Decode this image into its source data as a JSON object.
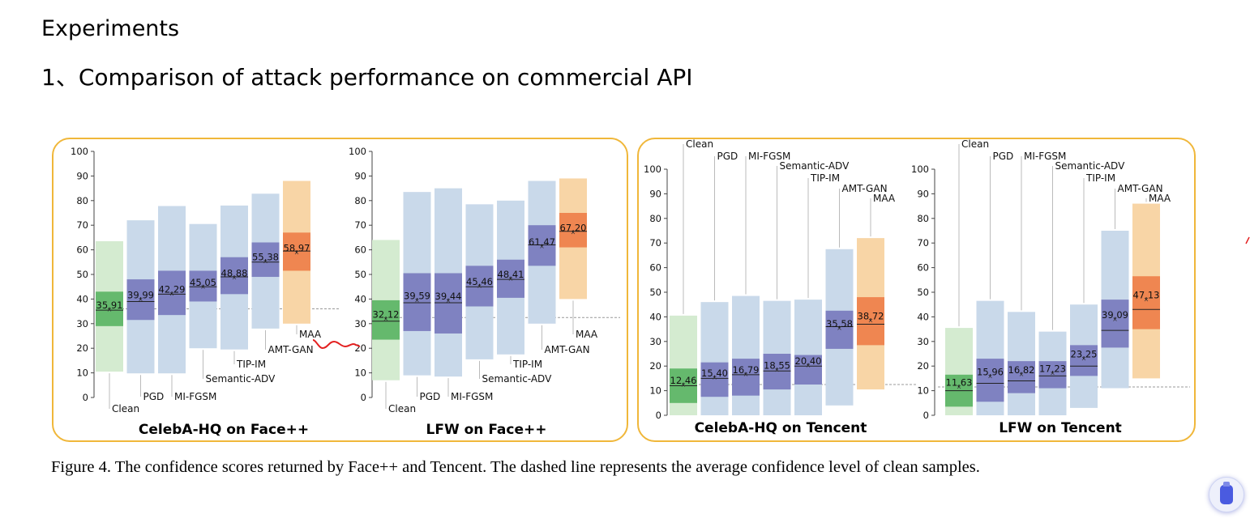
{
  "page": {
    "heading": "Experiments",
    "section": "1、Comparison of attack performance on commercial API"
  },
  "caption": "Figure 4.  The confidence scores returned by Face++ and Tencent.  The dashed line represents the average confidence level of clean samples.",
  "colors": {
    "frame": "#f0b73a",
    "clean_light": "#d4ebd0",
    "clean_dark": "#65b96d",
    "attack_light": "#c9d9ea",
    "attack_dark": "#7f82c1",
    "maa_light": "#f8d5a6",
    "maa_dark": "#ef8651",
    "annotation_stroke": "#e32020"
  },
  "icons": [
    "scroll-badge-icon",
    "red-squiggle-annotation"
  ],
  "chart_data": [
    {
      "type": "box",
      "title": "CelebA-HQ on Face++",
      "ylim": [
        0,
        100
      ],
      "yticks": [
        0,
        10,
        20,
        30,
        40,
        50,
        60,
        70,
        80,
        90,
        100
      ],
      "dashed_line_value": 36,
      "series": [
        {
          "name": "Clean",
          "min": 10.5,
          "q1": 29,
          "median": 35.5,
          "mean": 35.91,
          "q3": 43,
          "max": 63.5,
          "mean_label": "35,91",
          "style": "clean"
        },
        {
          "name": "PGD",
          "min": 9.8,
          "q1": 31.5,
          "median": 39,
          "mean": 39.99,
          "q3": 48,
          "max": 72,
          "mean_label": "39,99",
          "style": "attack"
        },
        {
          "name": "MI-FGSM",
          "min": 9.8,
          "q1": 33.5,
          "median": 42,
          "mean": 42.29,
          "q3": 51.5,
          "max": 77.8,
          "mean_label": "42,29",
          "style": "attack"
        },
        {
          "name": "Semantic-ADV",
          "min": 20,
          "q1": 39,
          "median": 45,
          "mean": 45.05,
          "q3": 51.5,
          "max": 70.5,
          "mean_label": "45,05",
          "style": "attack"
        },
        {
          "name": "TIP-IM",
          "min": 19.5,
          "q1": 42,
          "median": 49,
          "mean": 48.88,
          "q3": 57,
          "max": 78,
          "mean_label": "48,88",
          "style": "attack"
        },
        {
          "name": "AMT-GAN",
          "min": 28,
          "q1": 49,
          "median": 55,
          "mean": 55.38,
          "q3": 63,
          "max": 82.8,
          "mean_label": "55,38",
          "style": "attack"
        },
        {
          "name": "MAA",
          "min": 30,
          "q1": 51.5,
          "median": 59.5,
          "mean": 58.97,
          "q3": 67,
          "max": 88,
          "mean_label": "58,97",
          "style": "maa"
        }
      ],
      "legend_labels": [
        "Clean",
        "PGD",
        "MI-FGSM",
        "Semantic-ADV",
        "TIP-IM",
        "AMT-GAN",
        "MAA"
      ]
    },
    {
      "type": "box",
      "title": "LFW on Face++",
      "ylim": [
        0,
        100
      ],
      "yticks": [
        0,
        10,
        20,
        30,
        40,
        50,
        60,
        70,
        80,
        90,
        100
      ],
      "dashed_line_value": 32.5,
      "series": [
        {
          "name": "Clean",
          "min": 7,
          "q1": 23.5,
          "median": 31,
          "mean": 32.12,
          "q3": 39.5,
          "max": 64,
          "mean_label": "32,12",
          "style": "clean"
        },
        {
          "name": "PGD",
          "min": 9,
          "q1": 27,
          "median": 38.5,
          "mean": 39.59,
          "q3": 50.5,
          "max": 83.5,
          "mean_label": "39,59",
          "style": "attack"
        },
        {
          "name": "MI-FGSM",
          "min": 8.5,
          "q1": 26,
          "median": 38.5,
          "mean": 39.44,
          "q3": 50.5,
          "max": 85,
          "mean_label": "39,44",
          "style": "attack"
        },
        {
          "name": "Semantic-ADV",
          "min": 15.5,
          "q1": 37,
          "median": 45,
          "mean": 45.46,
          "q3": 53.5,
          "max": 78.5,
          "mean_label": "45,46",
          "style": "attack"
        },
        {
          "name": "TIP-IM",
          "min": 17.5,
          "q1": 40.5,
          "median": 48,
          "mean": 48.41,
          "q3": 56,
          "max": 80,
          "mean_label": "48,41",
          "style": "attack"
        },
        {
          "name": "AMT-GAN",
          "min": 30,
          "q1": 53.5,
          "median": 62,
          "mean": 61.47,
          "q3": 70,
          "max": 88,
          "mean_label": "61,47",
          "style": "attack"
        },
        {
          "name": "MAA",
          "min": 40,
          "q1": 61,
          "median": 67.5,
          "mean": 67.2,
          "q3": 75,
          "max": 89,
          "mean_label": "67,20",
          "style": "maa"
        }
      ],
      "legend_labels": [
        "Clean",
        "PGD",
        "MI-FGSM",
        "Semantic-ADV",
        "TIP-IM",
        "AMT-GAN",
        "MAA"
      ]
    },
    {
      "type": "box",
      "title": "CelebA-HQ on Tencent",
      "ylim": [
        0,
        100
      ],
      "yticks": [
        0,
        10,
        20,
        30,
        40,
        50,
        60,
        70,
        80,
        90,
        100
      ],
      "dashed_line_value": 12.5,
      "series": [
        {
          "name": "Clean",
          "min": 0,
          "q1": 5,
          "median": 12,
          "mean": 12.46,
          "q3": 19,
          "max": 40.5,
          "mean_label": "12,46",
          "style": "clean"
        },
        {
          "name": "PGD",
          "min": 0,
          "q1": 7.5,
          "median": 15,
          "mean": 15.4,
          "q3": 21.5,
          "max": 46,
          "mean_label": "15,40",
          "style": "attack"
        },
        {
          "name": "MI-FGSM",
          "min": 0,
          "q1": 8,
          "median": 16.5,
          "mean": 16.79,
          "q3": 23,
          "max": 48.5,
          "mean_label": "16,79",
          "style": "attack"
        },
        {
          "name": "Semantic-ADV",
          "min": 0,
          "q1": 10.5,
          "median": 18,
          "mean": 18.55,
          "q3": 25,
          "max": 46.5,
          "mean_label": "18,55",
          "style": "attack"
        },
        {
          "name": "TIP-IM",
          "min": 0,
          "q1": 12.5,
          "median": 20,
          "mean": 20.4,
          "q3": 24.5,
          "max": 47,
          "mean_label": "20,40",
          "style": "attack"
        },
        {
          "name": "AMT-GAN",
          "min": 4,
          "q1": 27,
          "median": 36,
          "mean": 35.58,
          "q3": 42.5,
          "max": 67.5,
          "mean_label": "35,58",
          "style": "attack"
        },
        {
          "name": "MAA",
          "min": 10.5,
          "q1": 28.5,
          "median": 37,
          "mean": 38.72,
          "q3": 48,
          "max": 72,
          "mean_label": "38,72",
          "style": "maa"
        }
      ],
      "legend_labels": [
        "Clean",
        "PGD",
        "MI-FGSM",
        "Semantic-ADV",
        "TIP-IM",
        "AMT-GAN",
        "MAA"
      ]
    },
    {
      "type": "box",
      "title": "LFW on Tencent",
      "ylim": [
        0,
        100
      ],
      "yticks": [
        0,
        10,
        20,
        30,
        40,
        50,
        60,
        70,
        80,
        90,
        100
      ],
      "dashed_line_value": 11.5,
      "series": [
        {
          "name": "Clean",
          "min": 0,
          "q1": 3.5,
          "median": 10,
          "mean": 11.63,
          "q3": 16.5,
          "max": 35.5,
          "mean_label": "11,63",
          "style": "clean"
        },
        {
          "name": "PGD",
          "min": 0,
          "q1": 5.5,
          "median": 13,
          "mean": 15.96,
          "q3": 23,
          "max": 46.5,
          "mean_label": "15,96",
          "style": "attack"
        },
        {
          "name": "MI-FGSM",
          "min": 0,
          "q1": 9,
          "median": 14,
          "mean": 16.82,
          "q3": 22,
          "max": 42,
          "mean_label": "16,82",
          "style": "attack"
        },
        {
          "name": "Semantic-ADV",
          "min": 0,
          "q1": 11,
          "median": 16,
          "mean": 17.23,
          "q3": 22,
          "max": 34,
          "mean_label": "17,23",
          "style": "attack"
        },
        {
          "name": "TIP-IM",
          "min": 3,
          "q1": 16,
          "median": 20,
          "mean": 23.25,
          "q3": 28.5,
          "max": 45,
          "mean_label": "23,25",
          "style": "attack"
        },
        {
          "name": "AMT-GAN",
          "min": 11,
          "q1": 27.5,
          "median": 34.5,
          "mean": 39.09,
          "q3": 47,
          "max": 75,
          "mean_label": "39,09",
          "style": "attack"
        },
        {
          "name": "MAA",
          "min": 15,
          "q1": 35,
          "median": 43,
          "mean": 47.13,
          "q3": 56.5,
          "max": 86,
          "mean_label": "47,13",
          "style": "maa"
        }
      ],
      "legend_labels": [
        "Clean",
        "PGD",
        "MI-FGSM",
        "Semantic-ADV",
        "TIP-IM",
        "AMT-GAN",
        "MAA"
      ]
    }
  ]
}
